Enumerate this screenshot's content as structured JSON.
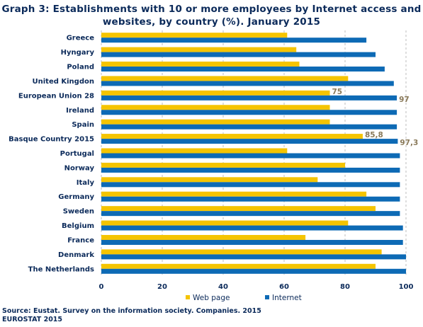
{
  "title_lines": [
    "Graph 3: Establishments with 10 or more employees by Internet access and",
    "websites, by country (%). January 2015"
  ],
  "source_lines": [
    "Source: Eustat. Survey on the information society. Companies. 2015",
    "EUROSTAT 2015"
  ],
  "colors": {
    "web": "#f5c400",
    "internet": "#0d6ab5",
    "grid": "#bdbdbd",
    "text": "#0b2a5a",
    "label": "#8a7a5a"
  },
  "chart_data": {
    "type": "bar",
    "orientation": "horizontal",
    "title": "Graph 3: Establishments with 10 or more employees by Internet access and websites, by country (%). January 2015",
    "categories": [
      "Greece",
      "Hyngary",
      "Poland",
      "United Kingdon",
      "European Union 28",
      "Ireland",
      "Spain",
      "Basque Country 2015",
      "Portugal",
      "Norway",
      "Italy",
      "Germany",
      "Sweden",
      "Belgium",
      "France",
      "Denmark",
      "The Netherlands"
    ],
    "series": [
      {
        "name": "Web page",
        "color": "#f5c400",
        "values": [
          61,
          64,
          65,
          81,
          75,
          75,
          75,
          85.8,
          61,
          80,
          71,
          87,
          90,
          81,
          67,
          92,
          90
        ]
      },
      {
        "name": "Internet",
        "color": "#0d6ab5",
        "values": [
          87,
          90,
          93,
          96,
          97,
          97,
          97,
          97.3,
          98,
          98,
          98,
          98,
          98,
          99,
          99,
          100,
          100
        ]
      }
    ],
    "data_labels": [
      {
        "category": "European Union 28",
        "series": "Web page",
        "text": "75"
      },
      {
        "category": "European Union 28",
        "series": "Internet",
        "text": "97"
      },
      {
        "category": "Basque Country 2015",
        "series": "Web page",
        "text": "85,8"
      },
      {
        "category": "Basque Country 2015",
        "series": "Internet",
        "text": "97,3"
      }
    ],
    "xlim": [
      0,
      100
    ],
    "xticks": [
      0,
      20,
      40,
      60,
      80,
      100
    ],
    "grid": "vertical dashed",
    "legend": "bottom"
  }
}
